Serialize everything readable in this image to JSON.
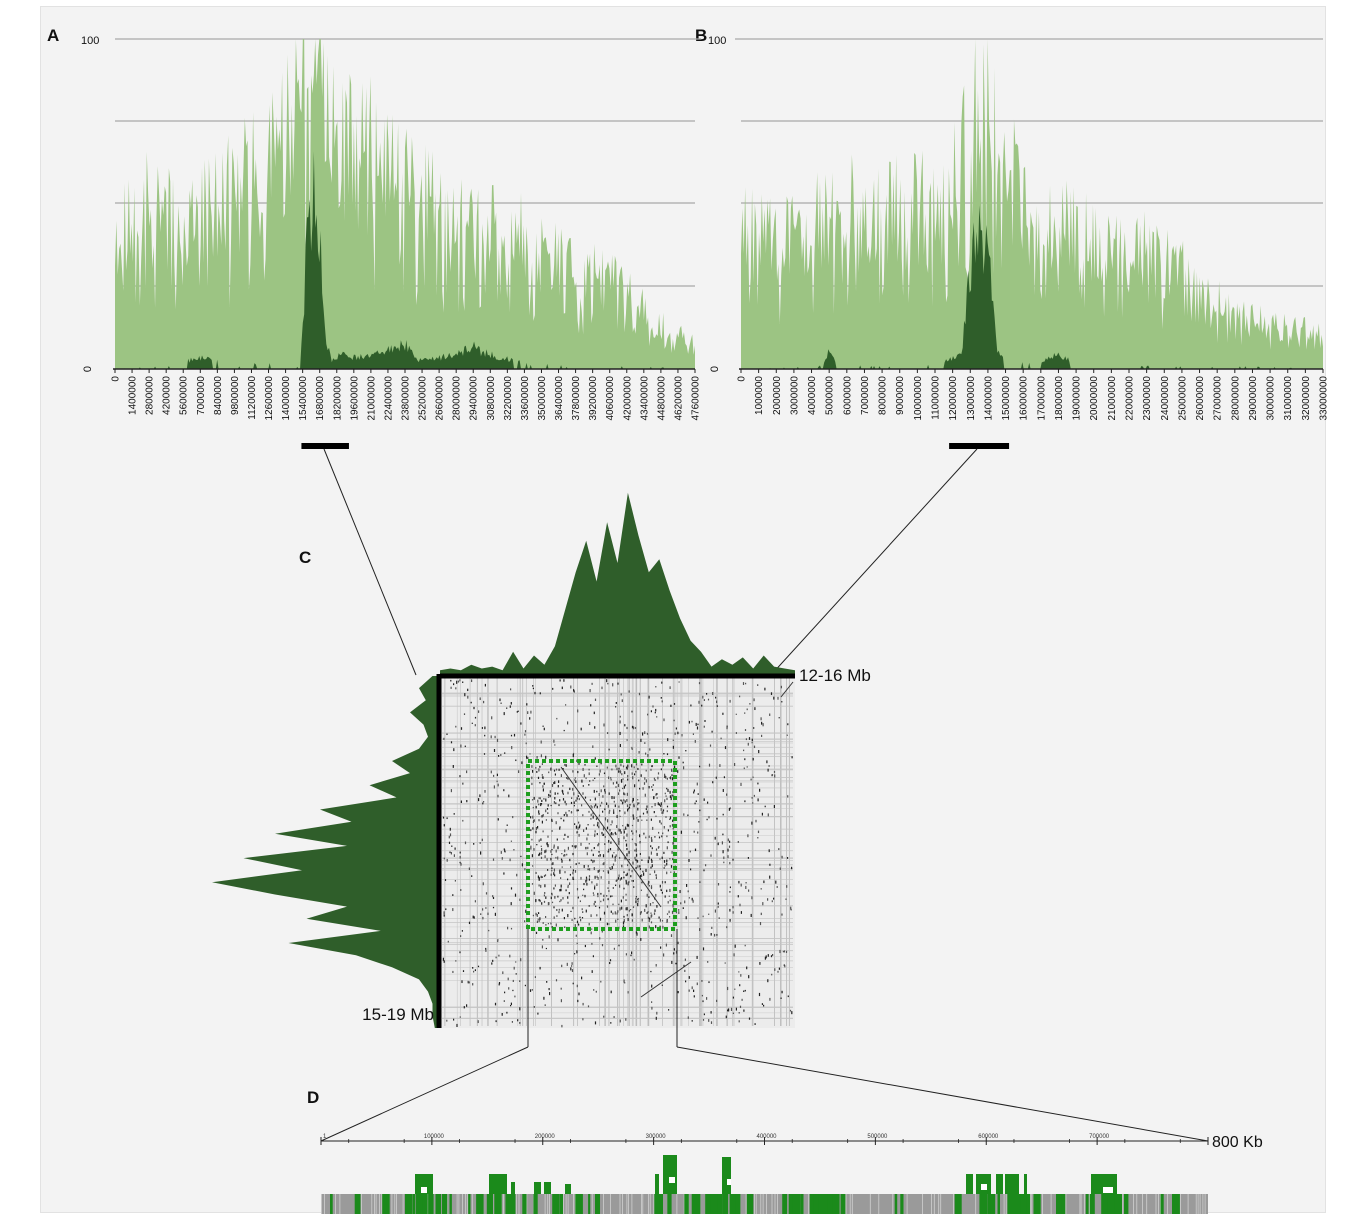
{
  "colors": {
    "light_green": "#9cc483",
    "dark_green": "#2f5e2a",
    "bright_green": "#1b8a1b",
    "gray": "#9a9a9a",
    "dotted_box": "#1f9e1f",
    "gridline": "#a8a8a8"
  },
  "panels": {
    "a": "A",
    "b": "B",
    "c": "C",
    "d": "D"
  },
  "chart_data": [
    {
      "panel": "A",
      "type": "area",
      "ylim": [
        0,
        100
      ],
      "y_ticks": [
        "0",
        "100"
      ],
      "x_tick_labels": [
        "0",
        "1400000",
        "2800000",
        "4200000",
        "5600000",
        "7000000",
        "8400000",
        "9800000",
        "11200000",
        "12600000",
        "14000000",
        "15400000",
        "16800000",
        "18200000",
        "19600000",
        "21000000",
        "22400000",
        "23800000",
        "25200000",
        "26600000",
        "28000000",
        "29400000",
        "30800000",
        "32200000",
        "33600000",
        "35000000",
        "36400000",
        "37800000",
        "39200000",
        "40600000",
        "42000000",
        "43400000",
        "44800000",
        "46200000",
        "47600000"
      ],
      "xlim": [
        0,
        47600000
      ],
      "highlight_range": [
        15300000,
        19200000
      ],
      "series": [
        {
          "x": [
            0,
            2000000,
            4000000,
            6000000,
            8000000,
            10000000,
            12000000,
            14000000,
            15000000,
            16000000,
            16500000,
            17000000,
            18000000,
            20000000,
            22000000,
            24000000,
            26000000,
            28000000,
            30000000,
            32000000,
            34000000,
            36000000,
            38000000,
            40000000,
            42000000,
            44000000,
            46000000,
            47600000
          ],
          "values": [
            45,
            60,
            55,
            50,
            58,
            65,
            72,
            82,
            92,
            97,
            99,
            96,
            88,
            80,
            74,
            68,
            58,
            52,
            48,
            50,
            45,
            40,
            35,
            32,
            28,
            18,
            12,
            10
          ]
        },
        {
          "x": [
            0,
            4000000,
            7000000,
            10000000,
            14000000,
            15200000,
            15700000,
            16300000,
            16800000,
            17300000,
            17800000,
            18400000,
            20000000,
            22000000,
            23800000,
            25000000,
            28000000,
            29400000,
            30000000,
            33600000,
            37000000,
            42000000,
            47600000
          ],
          "values": [
            0,
            1,
            4,
            1,
            3,
            0,
            40,
            62,
            45,
            10,
            3,
            5,
            4,
            6,
            9,
            3,
            5,
            8,
            6,
            2,
            1,
            1,
            0
          ]
        }
      ]
    },
    {
      "panel": "B",
      "type": "area",
      "ylim": [
        0,
        100
      ],
      "y_ticks": [
        "0",
        "100"
      ],
      "x_tick_labels": [
        "0",
        "1000000",
        "2000000",
        "3000000",
        "4000000",
        "5000000",
        "6000000",
        "7000000",
        "8000000",
        "9000000",
        "10000000",
        "11000000",
        "12000000",
        "13000000",
        "14000000",
        "15000000",
        "16000000",
        "17000000",
        "18000000",
        "19000000",
        "20000000",
        "21000000",
        "22000000",
        "23000000",
        "24000000",
        "25000000",
        "26000000",
        "27000000",
        "28000000",
        "29000000",
        "30000000",
        "31000000",
        "32000000",
        "33000000"
      ],
      "xlim": [
        0,
        33000000
      ],
      "highlight_range": [
        11800000,
        15200000
      ],
      "series": [
        {
          "x": [
            0,
            2000000,
            4000000,
            6000000,
            8000000,
            10000000,
            12000000,
            13000000,
            13500000,
            14000000,
            15000000,
            17000000,
            19000000,
            21000000,
            23000000,
            25000000,
            26000000,
            28000000,
            30000000,
            32000000,
            33000000
          ],
          "values": [
            50,
            45,
            52,
            58,
            55,
            60,
            65,
            82,
            97,
            92,
            70,
            55,
            50,
            45,
            42,
            35,
            25,
            22,
            15,
            14,
            12
          ]
        },
        {
          "x": [
            0,
            4500000,
            5000000,
            5500000,
            9000000,
            11000000,
            12500000,
            13000000,
            13500000,
            14000000,
            14500000,
            15000000,
            17000000,
            18000000,
            19000000,
            21000000,
            25000000,
            28000000,
            33000000
          ],
          "values": [
            0,
            1,
            6,
            1,
            1,
            2,
            5,
            35,
            52,
            42,
            8,
            2,
            3,
            5,
            2,
            1,
            1,
            1,
            0
          ]
        }
      ]
    },
    {
      "panel": "C",
      "type": "heatmap",
      "x_range_label": "12-16 Mb",
      "y_range_label": "15-19 Mb",
      "top_profile": [
        0.02,
        0.03,
        0.02,
        0.05,
        0.03,
        0.04,
        0.02,
        0.12,
        0.03,
        0.1,
        0.05,
        0.15,
        0.35,
        0.55,
        0.72,
        0.5,
        0.82,
        0.6,
        0.98,
        0.75,
        0.55,
        0.62,
        0.45,
        0.3,
        0.18,
        0.12,
        0.04,
        0.08,
        0.05,
        0.09,
        0.03,
        0.1,
        0.04,
        0.03,
        0.02
      ],
      "left_profile": [
        0.02,
        0.08,
        0.05,
        0.12,
        0.06,
        0.04,
        0.08,
        0.2,
        0.12,
        0.3,
        0.18,
        0.52,
        0.38,
        0.72,
        0.4,
        0.86,
        0.6,
        1.0,
        0.72,
        0.4,
        0.58,
        0.25,
        0.66,
        0.36,
        0.2,
        0.08,
        0.04,
        0.02,
        0.02,
        0.01
      ]
    },
    {
      "panel": "D",
      "type": "bar",
      "scale_end_label": "800 Kb",
      "tick_labels": [
        "1",
        "100000",
        "200000",
        "300000",
        "400000",
        "500000",
        "600000",
        "700000"
      ],
      "xlim": [
        0,
        800000
      ]
    }
  ]
}
